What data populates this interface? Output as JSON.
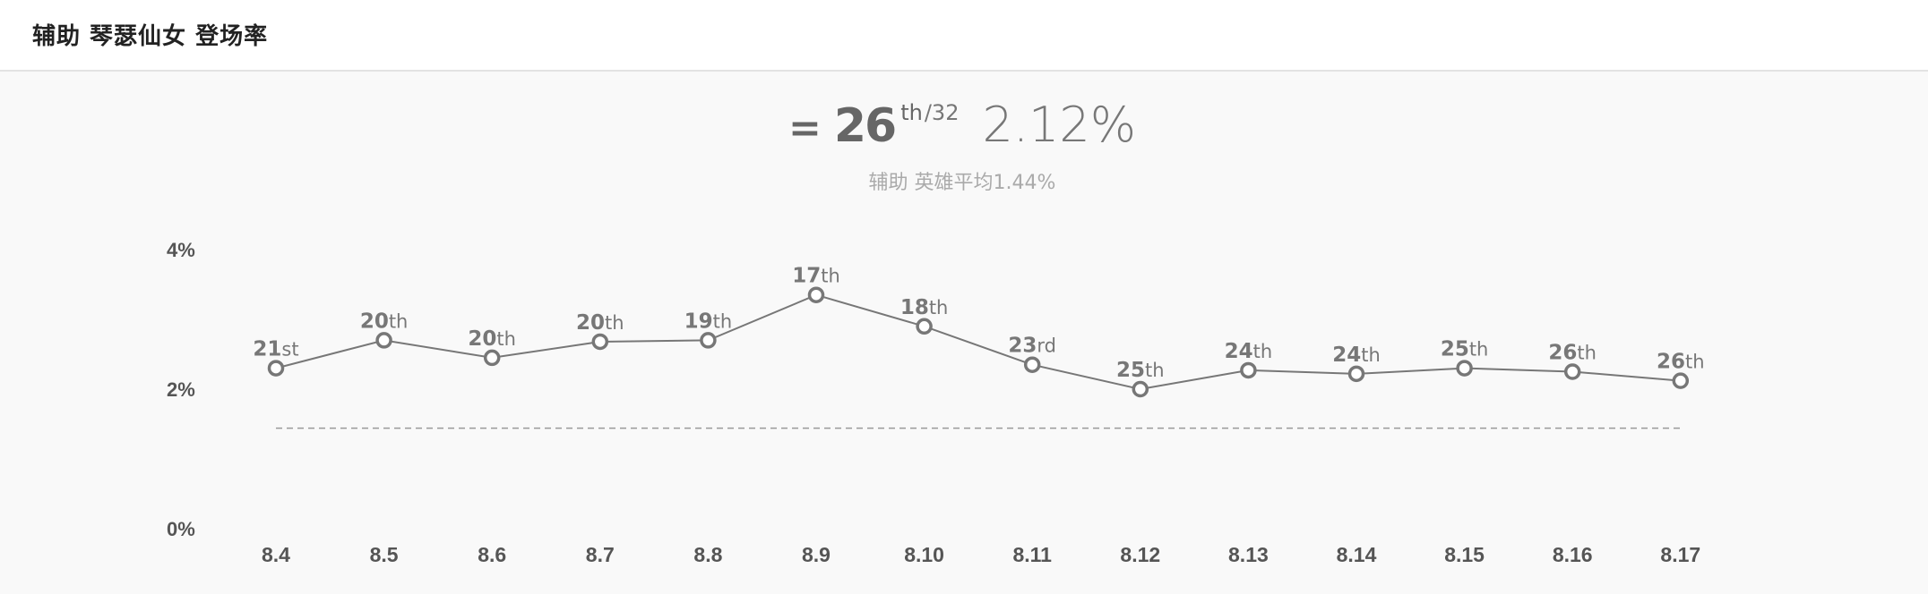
{
  "header": {
    "title": "辅助 琴瑟仙女 登场率"
  },
  "summary": {
    "trend_symbol": "=",
    "rank": "26",
    "rank_suffix": "th",
    "rank_total": "/32",
    "rate": "2.12%",
    "average_text": "辅助 英雄平均1.44%"
  },
  "chart_data": {
    "type": "line",
    "title": "",
    "xlabel": "",
    "ylabel": "",
    "categories": [
      "8.4",
      "8.5",
      "8.6",
      "8.7",
      "8.8",
      "8.9",
      "8.10",
      "8.11",
      "8.12",
      "8.13",
      "8.14",
      "8.15",
      "8.16",
      "8.17"
    ],
    "series": [
      {
        "values": [
          2.3,
          2.7,
          2.45,
          2.68,
          2.7,
          3.35,
          2.9,
          2.35,
          2.0,
          2.27,
          2.22,
          2.3,
          2.25,
          2.12
        ],
        "rank_numbers": [
          "21",
          "20",
          "20",
          "20",
          "19",
          "17",
          "18",
          "23",
          "25",
          "24",
          "24",
          "25",
          "26",
          "26"
        ],
        "rank_suffixes": [
          "st",
          "th",
          "th",
          "th",
          "th",
          "th",
          "th",
          "rd",
          "th",
          "th",
          "th",
          "th",
          "th",
          "th"
        ]
      }
    ],
    "average_line": 1.44,
    "y_ticks": [
      {
        "value": 4,
        "label": "4%"
      },
      {
        "value": 2,
        "label": "2%"
      },
      {
        "value": 0,
        "label": "0%"
      }
    ],
    "ylim": [
      0,
      4
    ],
    "grid": false,
    "line_color": "#777777",
    "marker_fill": "#ffffff",
    "average_line_color": "#999999"
  }
}
